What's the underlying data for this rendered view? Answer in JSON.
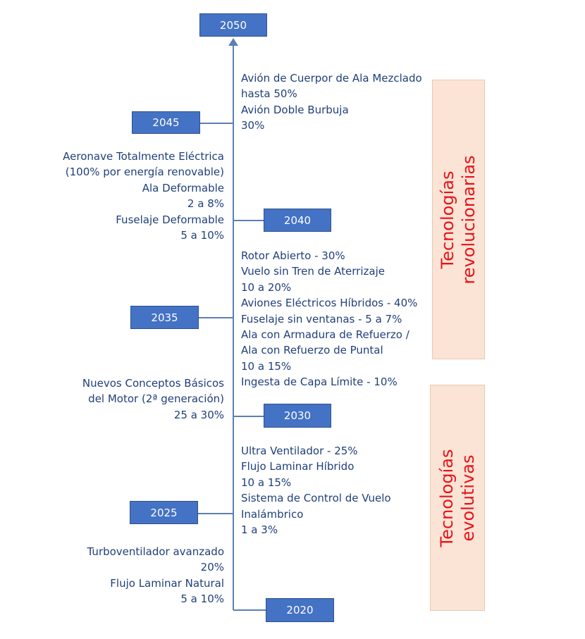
{
  "years": {
    "y2050": "2050",
    "y2045": "2045",
    "y2040": "2040",
    "y2035": "2035",
    "y2030": "2030",
    "y2025": "2025",
    "y2020": "2020"
  },
  "blocks": {
    "b2045_right": [
      "Avión de Cuerpor de Ala Mezclado",
      "hasta 50%",
      "Avión Doble Burbuja",
      "30%"
    ],
    "b2040_left": [
      "Aeronave Totalmente Eléctrica",
      "(100% por energía renovable)",
      "Ala Deformable",
      "2 a 8%",
      "Fuselaje Deformable",
      "5 a 10%"
    ],
    "b2035_right": [
      "Rotor Abierto - 30%",
      "Vuelo sin Tren de Aterrizaje",
      "10 a 20%",
      "Aviones Eléctricos Híbridos - 40%",
      "Fuselaje sin ventanas - 5 a 7%",
      "Ala con Armadura de Refuerzo /",
      "Ala con Refuerzo de Puntal",
      "10 a 15%",
      "Ingesta de Capa Límite - 10%"
    ],
    "b2030_left": [
      "Nuevos Conceptos Básicos",
      "del Motor (2ª generación)",
      "25 a 30%"
    ],
    "b2025_right": [
      "Ultra Ventilador - 25%",
      "Flujo Laminar Híbrido",
      "10 a 15%",
      "Sistema de Control de Vuelo",
      "Inalámbrico",
      "1 a 3%"
    ],
    "b2020_left": [
      "Turboventilador avanzado",
      "20%",
      "Flujo Laminar Natural ",
      "5 a 10%"
    ]
  },
  "bands": {
    "revolutionary": [
      "Tecnologías",
      "revolucionarias"
    ],
    "evolutionary": [
      "Tecnologías",
      "evolutivas"
    ]
  },
  "colors": {
    "year_box": "#4472c4",
    "text": "#1f3f7a",
    "band_fill": "#fbe4d5",
    "band_text": "#e8121a",
    "axis": "#5b7fb5"
  }
}
